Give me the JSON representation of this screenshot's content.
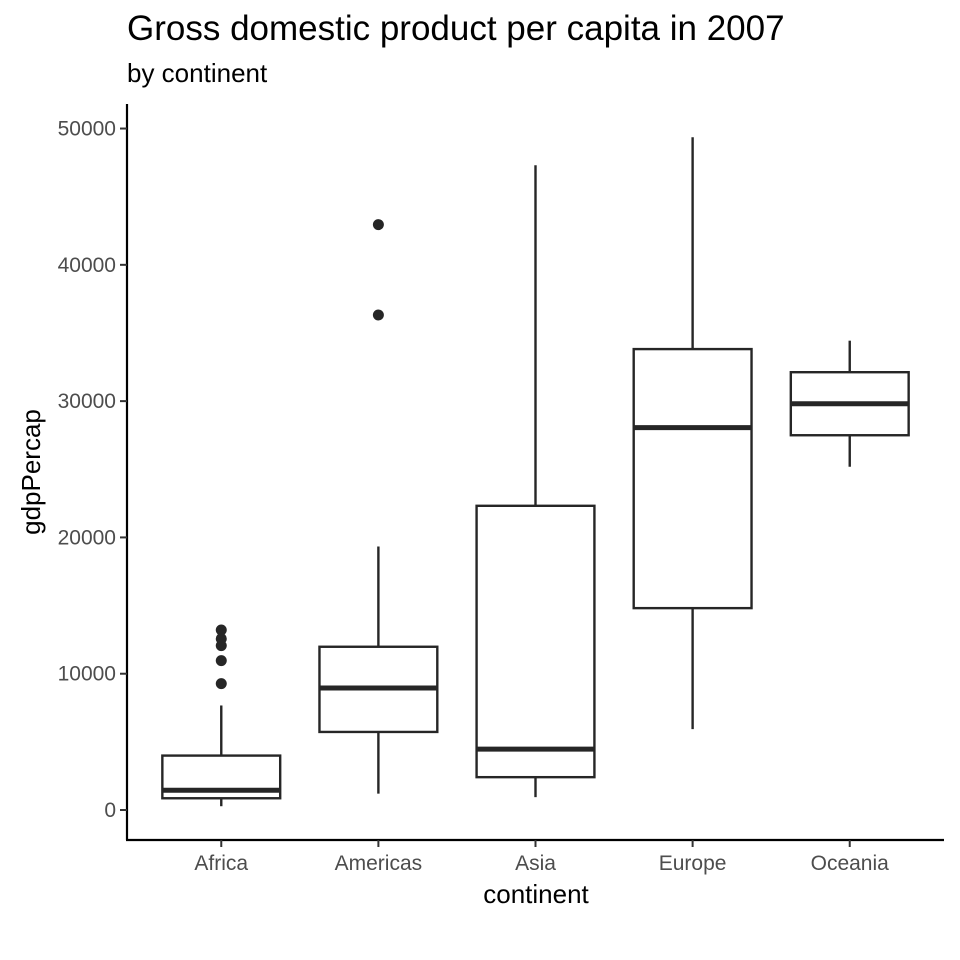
{
  "chart_data": {
    "type": "boxplot",
    "title": "Gross domestic product per capita in 2007",
    "subtitle": "by continent",
    "xlabel": "continent",
    "ylabel": "gdpPercap",
    "categories": [
      "Africa",
      "Americas",
      "Asia",
      "Europe",
      "Oceania"
    ],
    "ylim": [
      -2200,
      51800
    ],
    "yticks": [
      0,
      10000,
      20000,
      30000,
      40000,
      50000
    ],
    "ytick_labels": [
      "0",
      "10000",
      "20000",
      "30000",
      "40000",
      "50000"
    ],
    "grid": false,
    "boxes": [
      {
        "category": "Africa",
        "whisker_low": 278,
        "q1": 863,
        "median": 1452,
        "q3": 3993,
        "whisker_high": 7670,
        "outliers": [
          9270,
          10960,
          12060,
          12570,
          13210
        ]
      },
      {
        "category": "Americas",
        "whisker_low": 1201,
        "q1": 5728,
        "median": 8948,
        "q3": 11978,
        "whisker_high": 19330,
        "outliers": [
          36320,
          42950
        ]
      },
      {
        "category": "Asia",
        "whisker_low": 944,
        "q1": 2410,
        "median": 4471,
        "q3": 22320,
        "whisker_high": 47310,
        "outliers": []
      },
      {
        "category": "Europe",
        "whisker_low": 5937,
        "q1": 14812,
        "median": 28054,
        "q3": 33818,
        "whisker_high": 49360,
        "outliers": []
      },
      {
        "category": "Oceania",
        "whisker_low": 25185,
        "q1": 27497,
        "median": 29810,
        "q3": 32122,
        "whisker_high": 34435,
        "outliers": []
      }
    ],
    "colors": {
      "line": "#262626",
      "axis": "#000000",
      "tick_label": "#4d4d4d",
      "background": "#ffffff"
    }
  }
}
